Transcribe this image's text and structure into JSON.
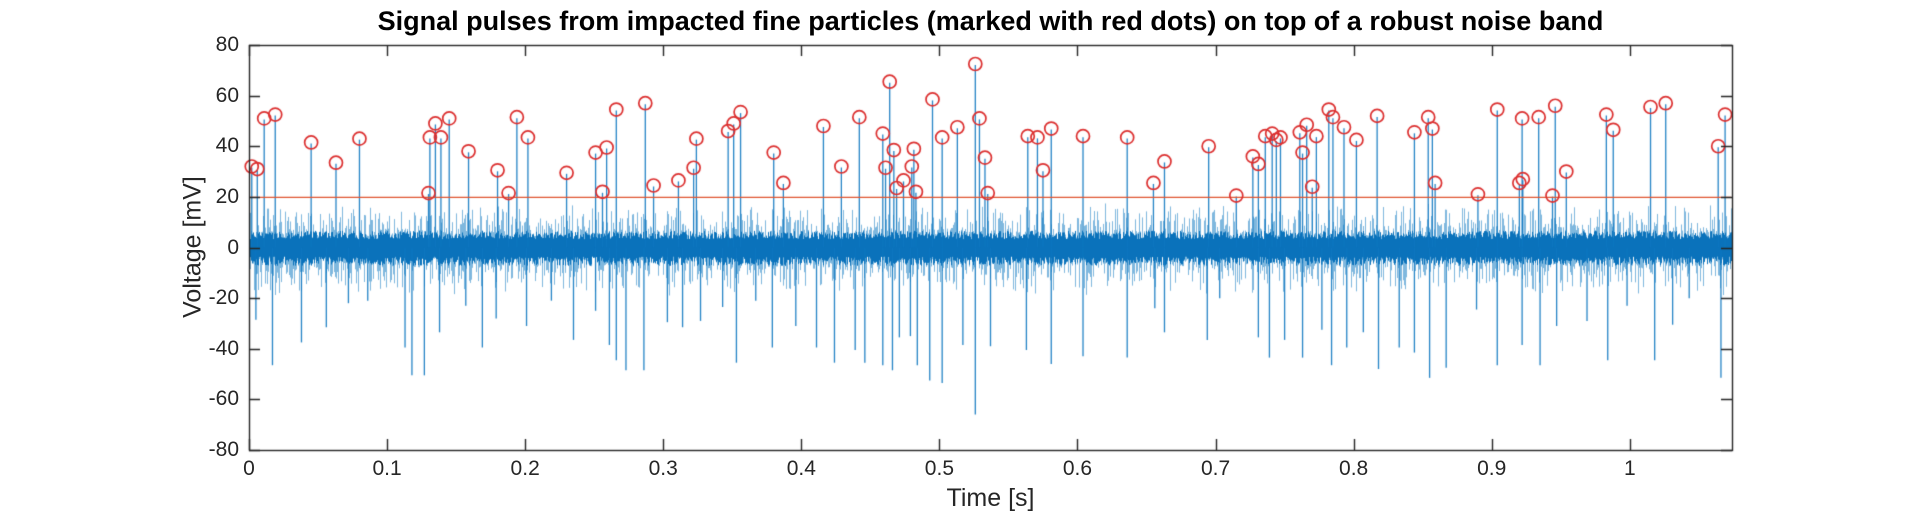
{
  "figure": {
    "title": "Signal pulses from impacted fine particles (marked with red dots) on top of a robust noise band",
    "background": "#ffffff"
  },
  "axes": {
    "xlabel": "Time [s]",
    "ylabel": "Voltage [mV]",
    "xlim": [
      0,
      1.074
    ],
    "ylim": [
      -80,
      80
    ],
    "x_ticks": [
      {
        "value": 0,
        "label": "0"
      },
      {
        "value": 0.1,
        "label": "0.1"
      },
      {
        "value": 0.2,
        "label": "0.2"
      },
      {
        "value": 0.3,
        "label": "0.3"
      },
      {
        "value": 0.4,
        "label": "0.4"
      },
      {
        "value": 0.5,
        "label": "0.5"
      },
      {
        "value": 0.6,
        "label": "0.6"
      },
      {
        "value": 0.7,
        "label": "0.7"
      },
      {
        "value": 0.8,
        "label": "0.8"
      },
      {
        "value": 0.9,
        "label": "0.9"
      },
      {
        "value": 1,
        "label": "1"
      }
    ],
    "y_ticks": [
      {
        "value": 80,
        "label": "80"
      },
      {
        "value": 60,
        "label": "60"
      },
      {
        "value": 40,
        "label": "40"
      },
      {
        "value": 20,
        "label": "20"
      },
      {
        "value": 0,
        "label": "0"
      },
      {
        "value": -20,
        "label": "-20"
      },
      {
        "value": -40,
        "label": "-40"
      },
      {
        "value": -60,
        "label": "-60"
      },
      {
        "value": -80,
        "label": "-80"
      }
    ],
    "axis_color": "#262626",
    "tick_label_color": "#262626",
    "box": true,
    "grid": false
  },
  "chart_data": {
    "type": "line",
    "subtype": "stem-pulses-over-noise",
    "title": "Signal pulses from impacted fine particles (marked with red dots) on top of a robust noise band",
    "xlabel": "Time [s]",
    "ylabel": "Voltage [mV]",
    "xlim": [
      0,
      1.074
    ],
    "ylim": [
      -80,
      80
    ],
    "legend": "none",
    "threshold_mV": 20,
    "threshold_color": "#df5430",
    "signal_color": "#0072BD",
    "marker_color": "#dc2f2f",
    "marker_shape": "open-circle",
    "noise_band": {
      "solid_mV": 6,
      "hair_mV": 15
    },
    "pulses_t_mV": [
      [
        0.002,
        32
      ],
      [
        0.006,
        31
      ],
      [
        0.011,
        51
      ],
      [
        0.019,
        52.5
      ],
      [
        0.045,
        41.5
      ],
      [
        0.063,
        33.5
      ],
      [
        0.08,
        43
      ],
      [
        0.13,
        21.5
      ],
      [
        0.131,
        43.5
      ],
      [
        0.135,
        49
      ],
      [
        0.139,
        43.5
      ],
      [
        0.145,
        51
      ],
      [
        0.159,
        38
      ],
      [
        0.18,
        30.5
      ],
      [
        0.188,
        21.5
      ],
      [
        0.194,
        51.5
      ],
      [
        0.202,
        43.5
      ],
      [
        0.23,
        29.5
      ],
      [
        0.251,
        37.5
      ],
      [
        0.256,
        22
      ],
      [
        0.259,
        39.5
      ],
      [
        0.266,
        54.5
      ],
      [
        0.287,
        57
      ],
      [
        0.293,
        24.5
      ],
      [
        0.311,
        26.5
      ],
      [
        0.322,
        31.5
      ],
      [
        0.324,
        43
      ],
      [
        0.347,
        46
      ],
      [
        0.351,
        49
      ],
      [
        0.356,
        53.5
      ],
      [
        0.38,
        37.5
      ],
      [
        0.387,
        25.5
      ],
      [
        0.416,
        48
      ],
      [
        0.429,
        32
      ],
      [
        0.442,
        51.5
      ],
      [
        0.459,
        45
      ],
      [
        0.461,
        31.5
      ],
      [
        0.464,
        65.5
      ],
      [
        0.467,
        38.5
      ],
      [
        0.469,
        23.5
      ],
      [
        0.474,
        26.5
      ],
      [
        0.48,
        32
      ],
      [
        0.4815,
        39
      ],
      [
        0.483,
        22
      ],
      [
        0.495,
        58.5
      ],
      [
        0.502,
        43.5
      ],
      [
        0.513,
        47.5
      ],
      [
        0.526,
        72.5
      ],
      [
        0.529,
        51
      ],
      [
        0.533,
        35.5
      ],
      [
        0.535,
        21.5
      ],
      [
        0.564,
        44
      ],
      [
        0.571,
        43.5
      ],
      [
        0.575,
        30.5
      ],
      [
        0.581,
        47
      ],
      [
        0.604,
        44
      ],
      [
        0.636,
        43.5
      ],
      [
        0.655,
        25.5
      ],
      [
        0.663,
        34
      ],
      [
        0.695,
        40
      ],
      [
        0.715,
        20.5
      ],
      [
        0.727,
        36
      ],
      [
        0.731,
        33
      ],
      [
        0.736,
        44
      ],
      [
        0.741,
        45
      ],
      [
        0.744,
        42.5
      ],
      [
        0.747,
        43.5
      ],
      [
        0.761,
        45.5
      ],
      [
        0.763,
        37.5
      ],
      [
        0.766,
        48.5
      ],
      [
        0.77,
        24
      ],
      [
        0.773,
        44
      ],
      [
        0.782,
        54.5
      ],
      [
        0.785,
        51.5
      ],
      [
        0.793,
        47.5
      ],
      [
        0.802,
        42.5
      ],
      [
        0.817,
        52
      ],
      [
        0.844,
        45.5
      ],
      [
        0.854,
        51.5
      ],
      [
        0.857,
        47
      ],
      [
        0.859,
        25.5
      ],
      [
        0.89,
        21
      ],
      [
        0.904,
        54.5
      ],
      [
        0.92,
        25.5
      ],
      [
        0.922,
        51
      ],
      [
        0.9225,
        27
      ],
      [
        0.934,
        51.5
      ],
      [
        0.944,
        20.5
      ],
      [
        0.946,
        56
      ],
      [
        0.954,
        30
      ],
      [
        0.983,
        52.5
      ],
      [
        0.988,
        46.5
      ],
      [
        1.015,
        55.5
      ],
      [
        1.026,
        57
      ],
      [
        1.064,
        40
      ],
      [
        1.069,
        52.5
      ]
    ],
    "negative_spikes_t_mV": [
      [
        0.005,
        -28.5
      ],
      [
        0.017,
        -46.5
      ],
      [
        0.038,
        -37.5
      ],
      [
        0.056,
        -31.5
      ],
      [
        0.072,
        -22
      ],
      [
        0.086,
        -21
      ],
      [
        0.113,
        -39.5
      ],
      [
        0.118,
        -50.5
      ],
      [
        0.127,
        -50.5
      ],
      [
        0.138,
        -33.5
      ],
      [
        0.157,
        -23
      ],
      [
        0.169,
        -39.5
      ],
      [
        0.179,
        -28
      ],
      [
        0.201,
        -31
      ],
      [
        0.219,
        -21
      ],
      [
        0.235,
        -36.5
      ],
      [
        0.251,
        -25
      ],
      [
        0.261,
        -38.5
      ],
      [
        0.266,
        -44.5
      ],
      [
        0.273,
        -48.5
      ],
      [
        0.286,
        -48.5
      ],
      [
        0.303,
        -29.5
      ],
      [
        0.314,
        -31.5
      ],
      [
        0.327,
        -29
      ],
      [
        0.343,
        -23.5
      ],
      [
        0.353,
        -45.5
      ],
      [
        0.367,
        -21
      ],
      [
        0.379,
        -39.5
      ],
      [
        0.396,
        -31
      ],
      [
        0.411,
        -39.5
      ],
      [
        0.424,
        -45.5
      ],
      [
        0.439,
        -40.5
      ],
      [
        0.446,
        -45.5
      ],
      [
        0.459,
        -46.5
      ],
      [
        0.466,
        -48.5
      ],
      [
        0.471,
        -35.5
      ],
      [
        0.479,
        -35
      ],
      [
        0.484,
        -46.5
      ],
      [
        0.493,
        -52.5
      ],
      [
        0.502,
        -53.5
      ],
      [
        0.517,
        -38.5
      ],
      [
        0.526,
        -66
      ],
      [
        0.537,
        -39
      ],
      [
        0.563,
        -40.5
      ],
      [
        0.581,
        -46
      ],
      [
        0.604,
        -43
      ],
      [
        0.636,
        -43.5
      ],
      [
        0.656,
        -24
      ],
      [
        0.663,
        -33.5
      ],
      [
        0.694,
        -36.5
      ],
      [
        0.703,
        -20
      ],
      [
        0.731,
        -35.5
      ],
      [
        0.739,
        -43.5
      ],
      [
        0.75,
        -36.5
      ],
      [
        0.763,
        -43.5
      ],
      [
        0.777,
        -32.5
      ],
      [
        0.784,
        -46.5
      ],
      [
        0.795,
        -39.5
      ],
      [
        0.807,
        -33.5
      ],
      [
        0.818,
        -48
      ],
      [
        0.833,
        -39.5
      ],
      [
        0.844,
        -41.5
      ],
      [
        0.855,
        -51.5
      ],
      [
        0.867,
        -47.5
      ],
      [
        0.889,
        -24.5
      ],
      [
        0.904,
        -46.5
      ],
      [
        0.922,
        -38.5
      ],
      [
        0.935,
        -46.5
      ],
      [
        0.947,
        -31
      ],
      [
        0.969,
        -29
      ],
      [
        0.984,
        -44.5
      ],
      [
        0.998,
        -23
      ],
      [
        1.018,
        -44.5
      ],
      [
        1.031,
        -30.5
      ],
      [
        1.043,
        -20
      ],
      [
        1.066,
        -51.5
      ]
    ]
  }
}
